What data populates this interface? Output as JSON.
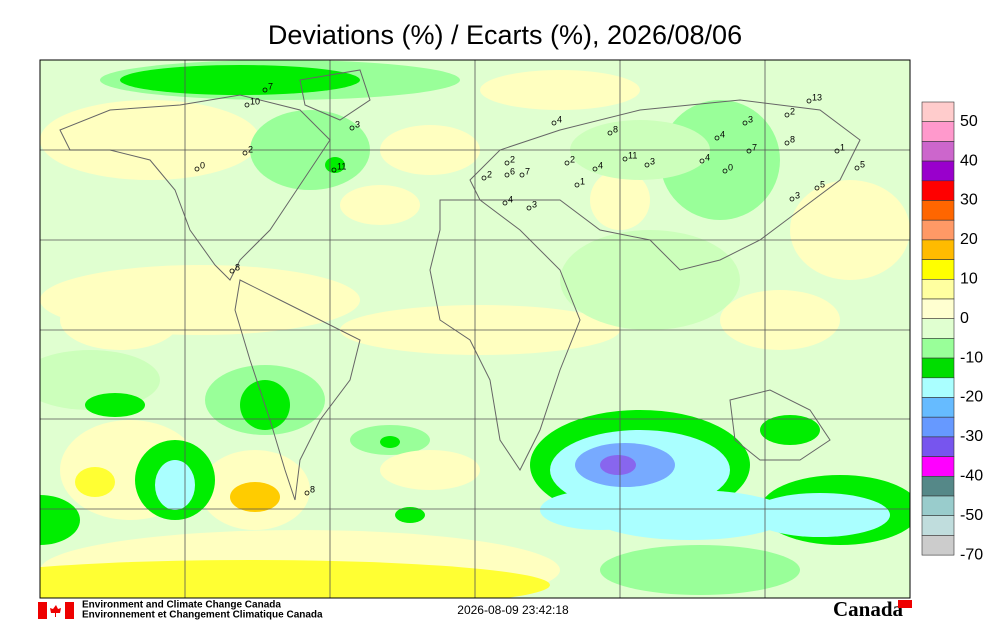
{
  "header": {
    "title": "Deviations (%) / Ecarts (%), 2026/08/06"
  },
  "colorbar": {
    "labels": [
      50,
      40,
      30,
      20,
      10,
      0,
      -10,
      -20,
      -30,
      -40,
      -50,
      -70
    ],
    "colors": [
      "#ffcccc",
      "#ff99cc",
      "#cc66cc",
      "#9900cc",
      "#ff0000",
      "#ff6600",
      "#ff9966",
      "#ffbb00",
      "#ffff00",
      "#ffffa0",
      "#ffffd0",
      "#e0ffd0",
      "#99ff99",
      "#00dd00",
      "#aaffff",
      "#66bbff",
      "#6699ff",
      "#7755ee",
      "#ff00ff",
      "#558888",
      "#99cccc",
      "#c0dddd",
      "#cccccc"
    ]
  },
  "stations": [
    7,
    10,
    3,
    2,
    0,
    11,
    8,
    4,
    8,
    4,
    3,
    2,
    13,
    8,
    7,
    1,
    4,
    0,
    11,
    3,
    4,
    2,
    1,
    2,
    2,
    6,
    7,
    3,
    4,
    3,
    5,
    5,
    8
  ],
  "footer": {
    "agency_en": "Environment and Climate Change Canada",
    "agency_fr": "Environnement et Changement Climatique Canada",
    "timestamp": "2026-08-09 23:42:18",
    "wordmark": "Canada"
  }
}
